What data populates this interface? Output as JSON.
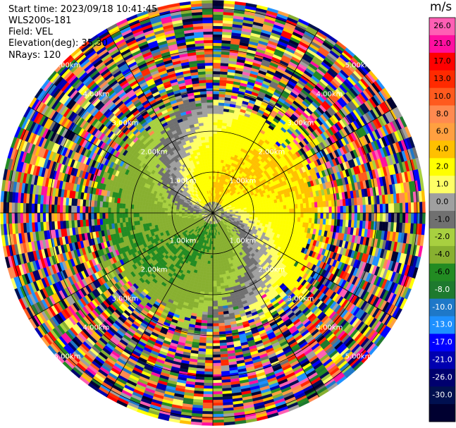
{
  "info": {
    "start_time": "Start time: 2023/09/18 10:41:45",
    "instrument": "WLS200s-181",
    "field": "Field: VEL",
    "elevation": "Elevation(deg): 35.30",
    "nrays": "NRays: 120"
  },
  "chart_data": {
    "type": "heatmap",
    "projection": "polar-ppi",
    "field": "VEL",
    "nrays": 120,
    "elevation_deg": 35.3,
    "range_rings_km": [
      1,
      2,
      3,
      4,
      5
    ],
    "ring_labels": [
      "1.00km",
      "2.00km",
      "3.00km",
      "4.00km",
      "5.00km"
    ],
    "max_range_km": 5.2,
    "colorbar": {
      "unit": "m/s",
      "vmin": -30,
      "vmax": 30,
      "ticks": [
        "26.0",
        "21.0",
        "17.0",
        "13.0",
        "10.0",
        "8.0",
        "6.0",
        "4.0",
        "2.0",
        "1.0",
        "0.0",
        "-1.0",
        "-2.0",
        "-4.0",
        "-6.0",
        "-8.0",
        "-10.0",
        "-13.0",
        "-17.0",
        "-21.0",
        "-26.0",
        "-30.0"
      ],
      "colors": [
        "#ff5fb4",
        "#ff0fa0",
        "#ff0000",
        "#ff2a00",
        "#ff5a1e",
        "#ff8a50",
        "#ffa040",
        "#ffc000",
        "#ffff00",
        "#ffff66",
        "#a0a0a0",
        "#707070",
        "#a8d040",
        "#88b030",
        "#228b22",
        "#1e7a2e",
        "#1e78c8",
        "#1e90ff",
        "#0000ff",
        "#0000b0",
        "#00006e",
        "#001050",
        "#000030"
      ]
    },
    "wind_pattern": {
      "description_free": true,
      "inner_positive_bearing_deg": 0,
      "outer_noise_from_km": 2.6
    }
  }
}
